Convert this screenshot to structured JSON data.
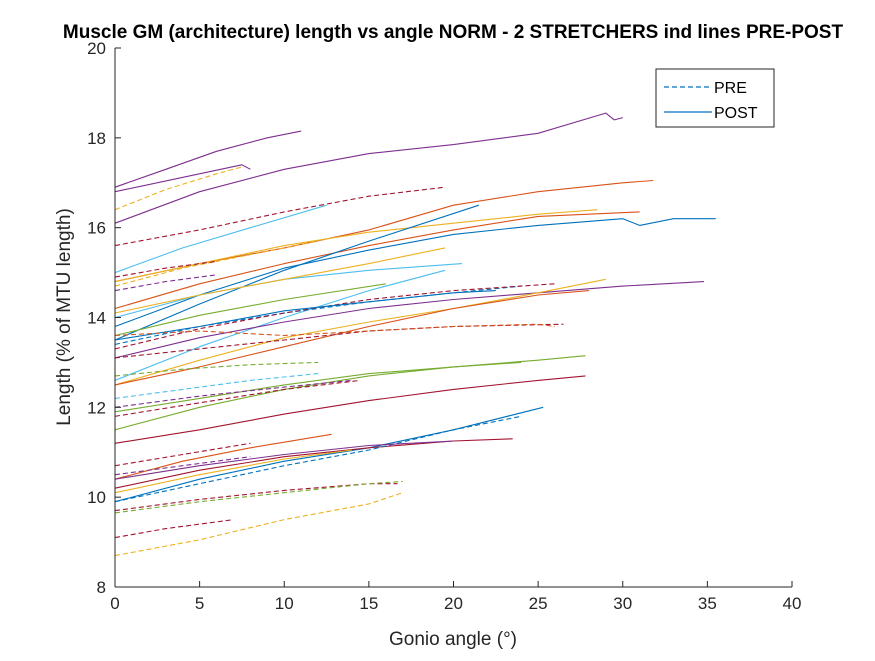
{
  "chart_data": {
    "type": "line",
    "title": "Muscle GM (architecture) length vs angle NORM - 2 STRETCHERS ind lines PRE-POST",
    "xlabel": "Gonio angle (°)",
    "ylabel": "Length (% of MTU length)",
    "xlim": [
      0,
      40
    ],
    "ylim": [
      8,
      20
    ],
    "xticks": [
      "0",
      "5",
      "10",
      "15",
      "20",
      "25",
      "30",
      "35",
      "40"
    ],
    "yticks": [
      "8",
      "10",
      "12",
      "14",
      "16",
      "18",
      "20"
    ],
    "grid": false,
    "legend": {
      "position": "top-right",
      "entries": [
        {
          "label": "PRE",
          "style": "dashed",
          "color": "#0072BD"
        },
        {
          "label": "POST",
          "style": "solid",
          "color": "#0072BD"
        }
      ]
    },
    "series": [
      {
        "color": "#7E2F8E",
        "style": "solid",
        "x": [
          0,
          3,
          6,
          9,
          11
        ],
        "y": [
          16.9,
          17.3,
          17.7,
          18.0,
          18.15
        ]
      },
      {
        "color": "#7E2F8E",
        "style": "solid",
        "x": [
          0,
          7.5,
          8
        ],
        "y": [
          16.8,
          17.4,
          17.3
        ]
      },
      {
        "color": "#EDB120",
        "style": "dashed",
        "x": [
          0,
          3,
          6,
          7.5
        ],
        "y": [
          16.4,
          16.85,
          17.2,
          17.35
        ]
      },
      {
        "color": "#7E2F8E",
        "style": "solid",
        "x": [
          0,
          5,
          10,
          15,
          20,
          25,
          29,
          29.5,
          30
        ],
        "y": [
          16.1,
          16.8,
          17.3,
          17.65,
          17.85,
          18.1,
          18.55,
          18.4,
          18.45
        ]
      },
      {
        "color": "#A2142F",
        "style": "dashed",
        "x": [
          0,
          5,
          10,
          15,
          19.5
        ],
        "y": [
          15.6,
          15.95,
          16.35,
          16.7,
          16.9
        ]
      },
      {
        "color": "#D95319",
        "style": "solid",
        "x": [
          0,
          5,
          10,
          15,
          20,
          25,
          30,
          31.8
        ],
        "y": [
          14.8,
          15.2,
          15.55,
          15.95,
          16.5,
          16.8,
          17.0,
          17.05
        ]
      },
      {
        "color": "#4DBEEE",
        "style": "solid",
        "x": [
          0,
          4,
          8,
          12.5
        ],
        "y": [
          15.0,
          15.55,
          16.0,
          16.5
        ]
      },
      {
        "color": "#0072BD",
        "style": "solid",
        "x": [
          0,
          5,
          10,
          15,
          20,
          25,
          30,
          31,
          33,
          35.5
        ],
        "y": [
          13.8,
          14.5,
          15.1,
          15.5,
          15.85,
          16.05,
          16.2,
          16.05,
          16.2,
          16.2
        ]
      },
      {
        "color": "#D95319",
        "style": "solid",
        "x": [
          0,
          5,
          10,
          15,
          20,
          25,
          31
        ],
        "y": [
          14.2,
          14.75,
          15.2,
          15.6,
          15.95,
          16.25,
          16.35
        ]
      },
      {
        "color": "#EDB120",
        "style": "solid",
        "x": [
          0,
          5,
          10,
          15,
          20,
          25,
          28.5
        ],
        "y": [
          14.8,
          15.2,
          15.6,
          15.9,
          16.1,
          16.3,
          16.4
        ]
      },
      {
        "color": "#0072BD",
        "style": "solid",
        "x": [
          0,
          5,
          10,
          15,
          21.5
        ],
        "y": [
          13.5,
          14.3,
          15.05,
          15.7,
          16.5
        ]
      },
      {
        "color": "#EDB120",
        "style": "dashed",
        "x": [
          0,
          4,
          8,
          12
        ],
        "y": [
          14.7,
          15.1,
          15.4,
          15.7
        ]
      },
      {
        "color": "#4DBEEE",
        "style": "solid",
        "x": [
          0,
          5,
          10,
          15,
          20.5
        ],
        "y": [
          14.0,
          14.5,
          14.85,
          15.05,
          15.2
        ]
      },
      {
        "color": "#EDB120",
        "style": "solid",
        "x": [
          0,
          5,
          10,
          15,
          19.5
        ],
        "y": [
          14.1,
          14.5,
          14.85,
          15.2,
          15.55
        ]
      },
      {
        "color": "#4DBEEE",
        "style": "solid",
        "x": [
          0,
          5,
          10,
          15,
          19.5
        ],
        "y": [
          12.6,
          13.35,
          14.0,
          14.6,
          15.05
        ]
      },
      {
        "color": "#77AC30",
        "style": "solid",
        "x": [
          0,
          5,
          10,
          16
        ],
        "y": [
          13.6,
          14.05,
          14.4,
          14.75
        ]
      },
      {
        "color": "#A2142F",
        "style": "dashed",
        "x": [
          0,
          3,
          6
        ],
        "y": [
          14.9,
          15.1,
          15.25
        ]
      },
      {
        "color": "#7E2F8E",
        "style": "dashed",
        "x": [
          0,
          3,
          6
        ],
        "y": [
          14.6,
          14.8,
          14.95
        ]
      },
      {
        "color": "#0072BD",
        "style": "dashed",
        "x": [
          0,
          5,
          10,
          15,
          20,
          24
        ],
        "y": [
          13.4,
          13.8,
          14.1,
          14.35,
          14.55,
          14.7
        ]
      },
      {
        "color": "#A2142F",
        "style": "dashed",
        "x": [
          0,
          5,
          10,
          15,
          20,
          26
        ],
        "y": [
          13.3,
          13.75,
          14.1,
          14.4,
          14.6,
          14.75
        ]
      },
      {
        "color": "#0072BD",
        "style": "solid",
        "x": [
          0,
          5,
          10,
          15,
          20,
          22.5
        ],
        "y": [
          13.5,
          13.8,
          14.15,
          14.35,
          14.55,
          14.6
        ]
      },
      {
        "color": "#7E2F8E",
        "style": "solid",
        "x": [
          0,
          5,
          10,
          15,
          20,
          25,
          30,
          34.8
        ],
        "y": [
          13.1,
          13.55,
          13.9,
          14.2,
          14.4,
          14.55,
          14.7,
          14.8
        ]
      },
      {
        "color": "#EDB120",
        "style": "solid",
        "x": [
          0,
          5,
          10,
          15,
          20,
          25,
          29
        ],
        "y": [
          12.5,
          13.05,
          13.55,
          13.9,
          14.2,
          14.55,
          14.85
        ]
      },
      {
        "color": "#D95319",
        "style": "solid",
        "x": [
          0,
          5,
          10,
          15,
          20,
          25,
          28
        ],
        "y": [
          12.5,
          12.9,
          13.35,
          13.8,
          14.2,
          14.5,
          14.6
        ]
      },
      {
        "color": "#A2142F",
        "style": "dashed",
        "x": [
          0,
          5,
          10,
          15,
          20,
          26.5
        ],
        "y": [
          13.1,
          13.3,
          13.5,
          13.7,
          13.8,
          13.85
        ]
      },
      {
        "color": "#D95319",
        "style": "dashed",
        "x": [
          0,
          5,
          10,
          15,
          20,
          25,
          26
        ],
        "y": [
          13.6,
          13.7,
          13.6,
          13.7,
          13.8,
          13.85,
          13.8
        ]
      },
      {
        "color": "#4DBEEE",
        "style": "dashed",
        "x": [
          0,
          4,
          8,
          12
        ],
        "y": [
          12.2,
          12.4,
          12.6,
          12.75
        ]
      },
      {
        "color": "#77AC30",
        "style": "dashed",
        "x": [
          0,
          4,
          8,
          12
        ],
        "y": [
          12.7,
          12.85,
          12.95,
          13.0
        ]
      },
      {
        "color": "#77AC30",
        "style": "solid",
        "x": [
          0,
          5,
          10,
          15,
          20,
          25,
          27.8
        ],
        "y": [
          11.5,
          12.0,
          12.4,
          12.7,
          12.9,
          13.05,
          13.15
        ]
      },
      {
        "color": "#77AC30",
        "style": "solid",
        "x": [
          0,
          5,
          10,
          15,
          20,
          24
        ],
        "y": [
          11.9,
          12.2,
          12.5,
          12.75,
          12.9,
          13.0
        ]
      },
      {
        "color": "#A2142F",
        "style": "dashed",
        "x": [
          0,
          5,
          10,
          14.5
        ],
        "y": [
          11.8,
          12.1,
          12.4,
          12.6
        ]
      },
      {
        "color": "#7E2F8E",
        "style": "dashed",
        "x": [
          0,
          5,
          10,
          14
        ],
        "y": [
          12.0,
          12.25,
          12.45,
          12.6
        ]
      },
      {
        "color": "#A2142F",
        "style": "solid",
        "x": [
          0,
          5,
          10,
          15,
          20,
          25,
          27.8
        ],
        "y": [
          11.2,
          11.5,
          11.85,
          12.15,
          12.4,
          12.6,
          12.7
        ]
      },
      {
        "color": "#0072BD",
        "style": "solid",
        "x": [
          0,
          5,
          10,
          15,
          20,
          25.3
        ],
        "y": [
          9.9,
          10.4,
          10.8,
          11.1,
          11.5,
          12.0
        ]
      },
      {
        "color": "#D95319",
        "style": "solid",
        "x": [
          0,
          4,
          8,
          12.8
        ],
        "y": [
          10.4,
          10.8,
          11.1,
          11.4
        ]
      },
      {
        "color": "#A2142F",
        "style": "solid",
        "x": [
          0,
          5,
          10,
          15,
          20,
          23.5
        ],
        "y": [
          10.2,
          10.6,
          10.9,
          11.1,
          11.25,
          11.3
        ]
      },
      {
        "color": "#0072BD",
        "style": "dashed",
        "x": [
          0,
          5,
          10,
          15,
          20,
          24
        ],
        "y": [
          9.9,
          10.3,
          10.7,
          11.05,
          11.5,
          11.8
        ]
      },
      {
        "color": "#7E2F8E",
        "style": "solid",
        "x": [
          0,
          5,
          10,
          15,
          20
        ],
        "y": [
          10.4,
          10.7,
          10.95,
          11.15,
          11.25
        ]
      },
      {
        "color": "#EDB120",
        "style": "solid",
        "x": [
          0,
          5,
          10,
          14
        ],
        "y": [
          10.1,
          10.5,
          10.85,
          11.05
        ]
      },
      {
        "color": "#A2142F",
        "style": "dashed",
        "x": [
          0,
          4,
          8
        ],
        "y": [
          10.7,
          10.95,
          11.2
        ]
      },
      {
        "color": "#7E2F8E",
        "style": "dashed",
        "x": [
          0,
          4,
          8
        ],
        "y": [
          10.5,
          10.7,
          10.9
        ]
      },
      {
        "color": "#A2142F",
        "style": "dashed",
        "x": [
          0,
          5,
          10,
          15,
          16.7
        ],
        "y": [
          9.7,
          9.95,
          10.15,
          10.3,
          10.3
        ]
      },
      {
        "color": "#77AC30",
        "style": "dashed",
        "x": [
          0,
          5,
          10,
          15,
          17
        ],
        "y": [
          9.65,
          9.9,
          10.1,
          10.3,
          10.35
        ]
      },
      {
        "color": "#EDB120",
        "style": "dashed",
        "x": [
          0,
          5,
          10,
          15,
          17
        ],
        "y": [
          8.7,
          9.05,
          9.5,
          9.85,
          10.1
        ]
      },
      {
        "color": "#A2142F",
        "style": "dashed",
        "x": [
          0,
          3,
          6,
          7
        ],
        "y": [
          9.1,
          9.3,
          9.45,
          9.5
        ]
      }
    ]
  }
}
